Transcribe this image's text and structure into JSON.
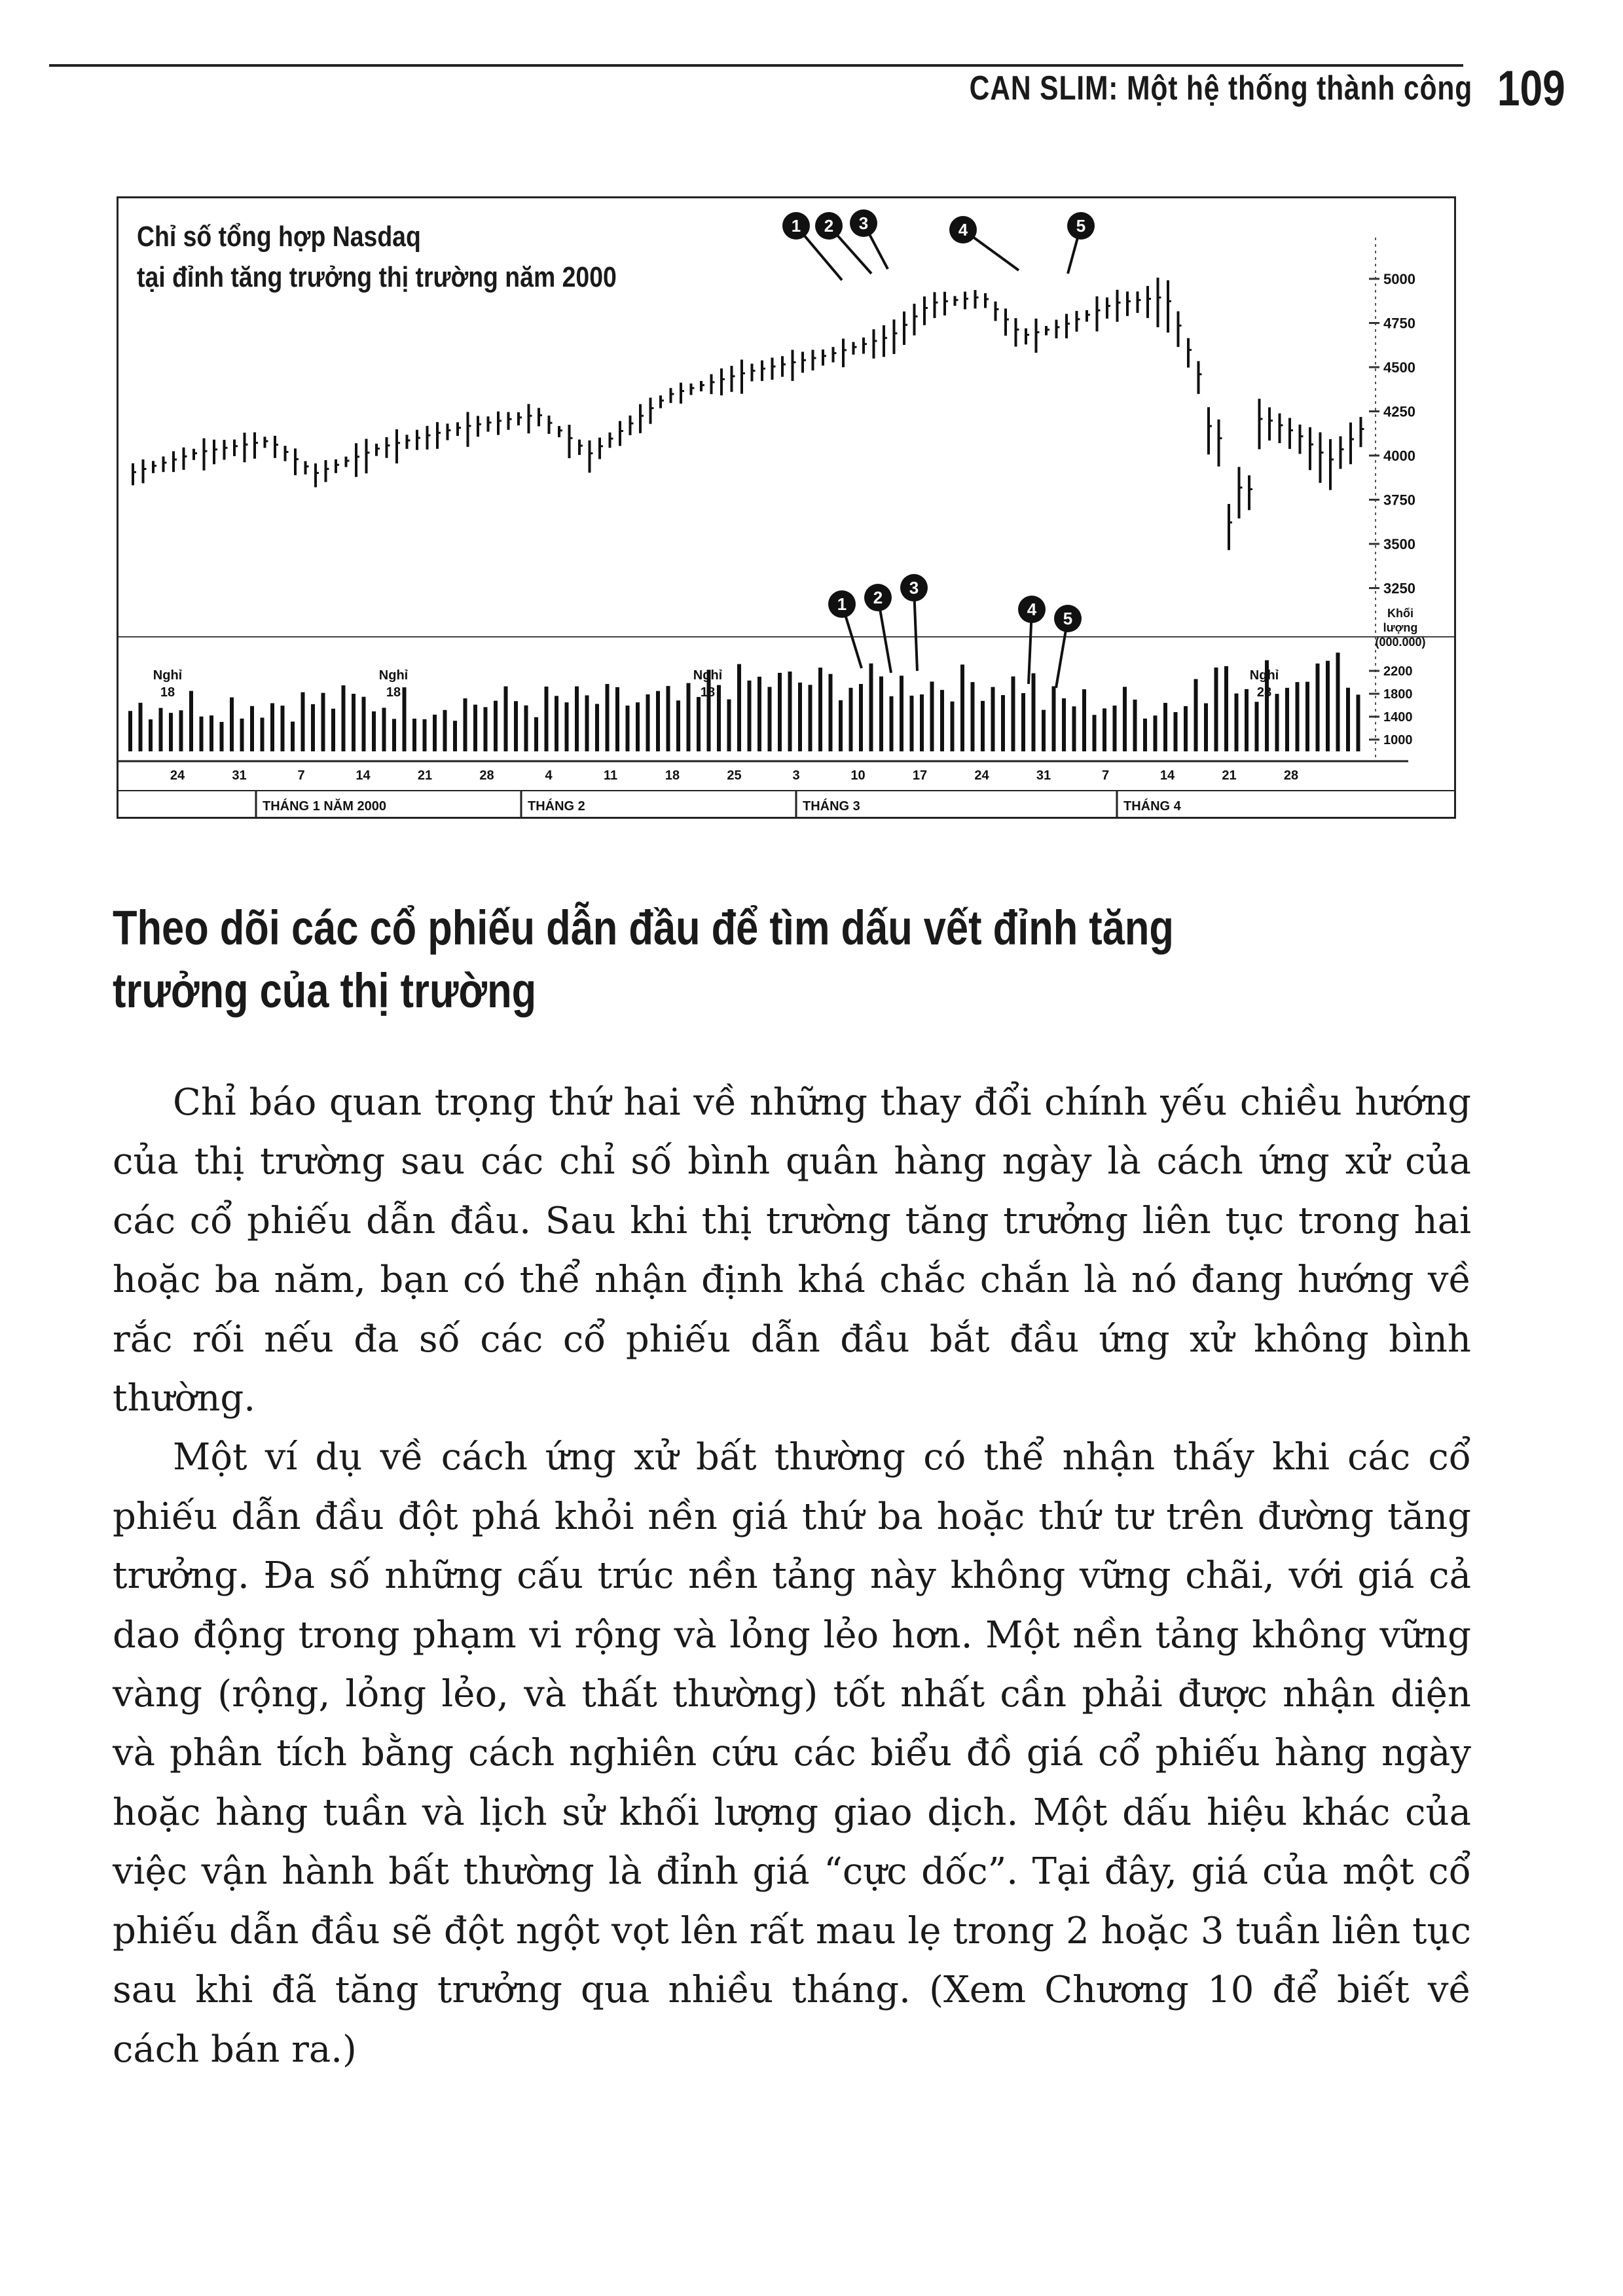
{
  "header": {
    "title": "CAN SLIM: Một hệ thống thành công",
    "page_number": "109"
  },
  "figure": {
    "title_lines": [
      "Chỉ số tổng hợp Nasdaq",
      "tại đỉnh tăng trưởng thị trường năm 2000"
    ],
    "price_axis_labels": [
      "5000",
      "4750",
      "4500",
      "4250",
      "4000",
      "3750",
      "3500",
      "3250"
    ],
    "volume_axis_title": [
      "Khối",
      "lượng",
      "(000.000)"
    ],
    "volume_axis_labels": [
      "2200",
      "1800",
      "1400",
      "1000"
    ],
    "day_labels": [
      "24",
      "31",
      "7",
      "14",
      "21",
      "28",
      "4",
      "11",
      "18",
      "25",
      "3",
      "10",
      "17",
      "24",
      "31",
      "7",
      "14",
      "21",
      "28"
    ],
    "month_labels": [
      "THÁNG 1 NĂM 2000",
      "THÁNG 2",
      "THÁNG 3",
      "THÁNG 4"
    ],
    "holiday_labels": [
      "Nghỉ\n18",
      "Nghỉ\n18",
      "Nghỉ\n18",
      "Nghỉ\n28"
    ],
    "top_markers": [
      "1",
      "2",
      "3",
      "4",
      "5"
    ],
    "bottom_markers": [
      "1",
      "2",
      "3",
      "4",
      "5"
    ]
  },
  "section_heading": "Theo dõi các cổ phiếu dẫn đầu để tìm dấu vết đỉnh tăng trưởng của thị trường",
  "paragraphs": [
    "Chỉ báo quan trọng thứ hai về những thay đổi chính yếu chiều hướng của thị trường sau các chỉ số bình quân hàng ngày là cách ứng xử của các cổ phiếu dẫn đầu. Sau khi thị trường tăng trưởng liên tục trong hai hoặc ba năm, bạn có thể nhận định khá chắc chắn là nó đang hướng về rắc rối nếu đa số các cổ phiếu dẫn đầu bắt đầu ứng xử không bình thường.",
    "Một ví dụ về cách ứng xử bất thường có thể nhận thấy khi các cổ phiếu dẫn đầu đột phá khỏi nền giá thứ ba hoặc thứ tư trên đường tăng trưởng. Đa số những cấu trúc nền tảng này không vững chãi, với giá cả dao động trong phạm vi rộng và lỏng lẻo hơn. Một nền tảng không vững vàng (rộng, lỏng lẻo, và thất thường) tốt nhất cần phải được nhận diện và phân tích bằng cách nghiên cứu các biểu đồ giá cổ phiếu hàng ngày hoặc hàng tuần và lịch sử khối lượng giao dịch. Một dấu hiệu khác của việc vận hành bất thường là đỉnh giá “cực dốc”. Tại đây, giá của một cổ phiếu dẫn đầu sẽ đột ngột vọt lên rất mau lẹ trong 2 hoặc 3 tuần liên tục sau khi đã tăng trưởng qua nhiều tháng. (Xem Chương 10 để biết về cách bán ra.)"
  ]
}
